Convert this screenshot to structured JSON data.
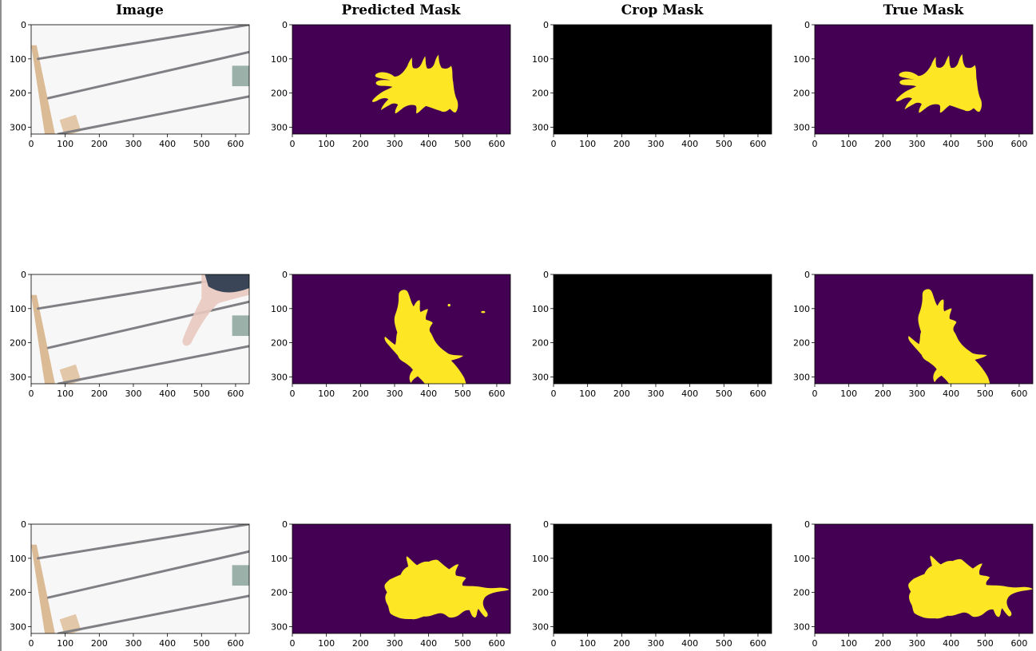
{
  "columns": [
    "Image",
    "Predicted Mask",
    "Crop Mask",
    "True Mask"
  ],
  "colors": {
    "mask_background": "#440154",
    "mask_foreground": "#fde725",
    "crop_background": "#000000",
    "photo_background": "#f7f7f7",
    "rail": "#808084",
    "fruit": "#a8475f",
    "leaf": "#9fb86b"
  },
  "chart_data": {
    "type": "image-grid",
    "rows": 3,
    "columns": [
      "Image",
      "Predicted Mask",
      "Crop Mask",
      "True Mask"
    ],
    "xlim": [
      0,
      640
    ],
    "ylim": [
      320,
      0
    ],
    "xticks": [
      0,
      100,
      200,
      300,
      400,
      500,
      600
    ],
    "yticks": [
      0,
      100,
      200,
      300
    ],
    "image_size": {
      "width": 640,
      "height": 320
    }
  }
}
